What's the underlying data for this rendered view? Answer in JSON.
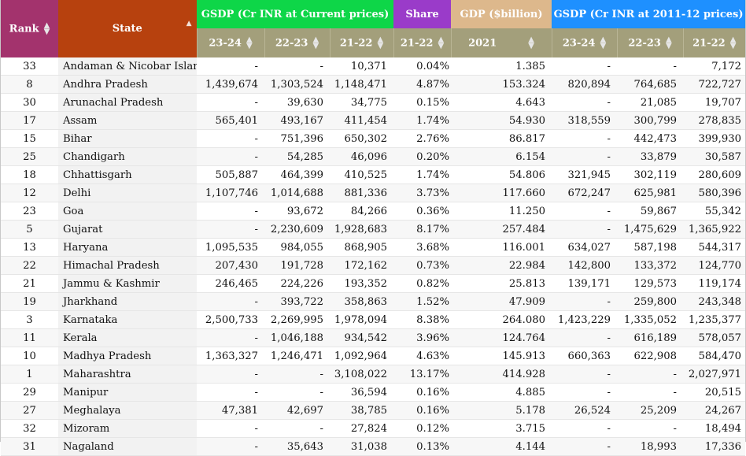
{
  "header": {
    "rank": "Rank",
    "state": "State",
    "gsdp_current": "GSDP (Cr INR at Current prices)",
    "share": "Share",
    "gdp_billion": "GDP ($billion)",
    "gsdp_constant": "GSDP (Cr INR at 2011-12 prices)",
    "sub": {
      "cur_2324": "23-24",
      "cur_2223": "22-23",
      "cur_2122": "21-22",
      "share_2122": "21-22",
      "gdp_2021": "2021",
      "const_2324": "23-24",
      "const_2223": "22-23",
      "const_2122": "21-22"
    }
  },
  "rows": [
    {
      "rank": "33",
      "state": "Andaman & Nicobar Islands",
      "c2324": "-",
      "c2223": "-",
      "c2122": "10,371",
      "share": "0.04%",
      "gdp": "1.385",
      "k2324": "-",
      "k2223": "-",
      "k2122": "7,172"
    },
    {
      "rank": "8",
      "state": "Andhra Pradesh",
      "c2324": "1,439,674",
      "c2223": "1,303,524",
      "c2122": "1,148,471",
      "share": "4.87%",
      "gdp": "153.324",
      "k2324": "820,894",
      "k2223": "764,685",
      "k2122": "722,727"
    },
    {
      "rank": "30",
      "state": "Arunachal Pradesh",
      "c2324": "-",
      "c2223": "39,630",
      "c2122": "34,775",
      "share": "0.15%",
      "gdp": "4.643",
      "k2324": "-",
      "k2223": "21,085",
      "k2122": "19,707"
    },
    {
      "rank": "17",
      "state": "Assam",
      "c2324": "565,401",
      "c2223": "493,167",
      "c2122": "411,454",
      "share": "1.74%",
      "gdp": "54.930",
      "k2324": "318,559",
      "k2223": "300,799",
      "k2122": "278,835"
    },
    {
      "rank": "15",
      "state": "Bihar",
      "c2324": "-",
      "c2223": "751,396",
      "c2122": "650,302",
      "share": "2.76%",
      "gdp": "86.817",
      "k2324": "-",
      "k2223": "442,473",
      "k2122": "399,930"
    },
    {
      "rank": "25",
      "state": "Chandigarh",
      "c2324": "-",
      "c2223": "54,285",
      "c2122": "46,096",
      "share": "0.20%",
      "gdp": "6.154",
      "k2324": "-",
      "k2223": "33,879",
      "k2122": "30,587"
    },
    {
      "rank": "18",
      "state": "Chhattisgarh",
      "c2324": "505,887",
      "c2223": "464,399",
      "c2122": "410,525",
      "share": "1.74%",
      "gdp": "54.806",
      "k2324": "321,945",
      "k2223": "302,119",
      "k2122": "280,609"
    },
    {
      "rank": "12",
      "state": "Delhi",
      "c2324": "1,107,746",
      "c2223": "1,014,688",
      "c2122": "881,336",
      "share": "3.73%",
      "gdp": "117.660",
      "k2324": "672,247",
      "k2223": "625,981",
      "k2122": "580,396"
    },
    {
      "rank": "23",
      "state": "Goa",
      "c2324": "-",
      "c2223": "93,672",
      "c2122": "84,266",
      "share": "0.36%",
      "gdp": "11.250",
      "k2324": "-",
      "k2223": "59,867",
      "k2122": "55,342"
    },
    {
      "rank": "5",
      "state": "Gujarat",
      "c2324": "-",
      "c2223": "2,230,609",
      "c2122": "1,928,683",
      "share": "8.17%",
      "gdp": "257.484",
      "k2324": "-",
      "k2223": "1,475,629",
      "k2122": "1,365,922"
    },
    {
      "rank": "13",
      "state": "Haryana",
      "c2324": "1,095,535",
      "c2223": "984,055",
      "c2122": "868,905",
      "share": "3.68%",
      "gdp": "116.001",
      "k2324": "634,027",
      "k2223": "587,198",
      "k2122": "544,317"
    },
    {
      "rank": "22",
      "state": "Himachal Pradesh",
      "c2324": "207,430",
      "c2223": "191,728",
      "c2122": "172,162",
      "share": "0.73%",
      "gdp": "22.984",
      "k2324": "142,800",
      "k2223": "133,372",
      "k2122": "124,770"
    },
    {
      "rank": "21",
      "state": "Jammu & Kashmir",
      "c2324": "246,465",
      "c2223": "224,226",
      "c2122": "193,352",
      "share": "0.82%",
      "gdp": "25.813",
      "k2324": "139,171",
      "k2223": "129,573",
      "k2122": "119,174"
    },
    {
      "rank": "19",
      "state": "Jharkhand",
      "c2324": "-",
      "c2223": "393,722",
      "c2122": "358,863",
      "share": "1.52%",
      "gdp": "47.909",
      "k2324": "-",
      "k2223": "259,800",
      "k2122": "243,348"
    },
    {
      "rank": "3",
      "state": "Karnataka",
      "c2324": "2,500,733",
      "c2223": "2,269,995",
      "c2122": "1,978,094",
      "share": "8.38%",
      "gdp": "264.080",
      "k2324": "1,423,229",
      "k2223": "1,335,052",
      "k2122": "1,235,377"
    },
    {
      "rank": "11",
      "state": "Kerala",
      "c2324": "-",
      "c2223": "1,046,188",
      "c2122": "934,542",
      "share": "3.96%",
      "gdp": "124.764",
      "k2324": "-",
      "k2223": "616,189",
      "k2122": "578,057"
    },
    {
      "rank": "10",
      "state": "Madhya Pradesh",
      "c2324": "1,363,327",
      "c2223": "1,246,471",
      "c2122": "1,092,964",
      "share": "4.63%",
      "gdp": "145.913",
      "k2324": "660,363",
      "k2223": "622,908",
      "k2122": "584,470"
    },
    {
      "rank": "1",
      "state": "Maharashtra",
      "c2324": "-",
      "c2223": "-",
      "c2122": "3,108,022",
      "share": "13.17%",
      "gdp": "414.928",
      "k2324": "-",
      "k2223": "-",
      "k2122": "2,027,971"
    },
    {
      "rank": "29",
      "state": "Manipur",
      "c2324": "-",
      "c2223": "-",
      "c2122": "36,594",
      "share": "0.16%",
      "gdp": "4.885",
      "k2324": "-",
      "k2223": "-",
      "k2122": "20,515"
    },
    {
      "rank": "27",
      "state": "Meghalaya",
      "c2324": "47,381",
      "c2223": "42,697",
      "c2122": "38,785",
      "share": "0.16%",
      "gdp": "5.178",
      "k2324": "26,524",
      "k2223": "25,209",
      "k2122": "24,267"
    },
    {
      "rank": "32",
      "state": "Mizoram",
      "c2324": "-",
      "c2223": "-",
      "c2122": "27,824",
      "share": "0.12%",
      "gdp": "3.715",
      "k2324": "-",
      "k2223": "-",
      "k2122": "18,494"
    },
    {
      "rank": "31",
      "state": "Nagaland",
      "c2324": "-",
      "c2223": "35,643",
      "c2122": "31,038",
      "share": "0.13%",
      "gdp": "4.144",
      "k2324": "-",
      "k2223": "18,993",
      "k2122": "17,336"
    }
  ]
}
